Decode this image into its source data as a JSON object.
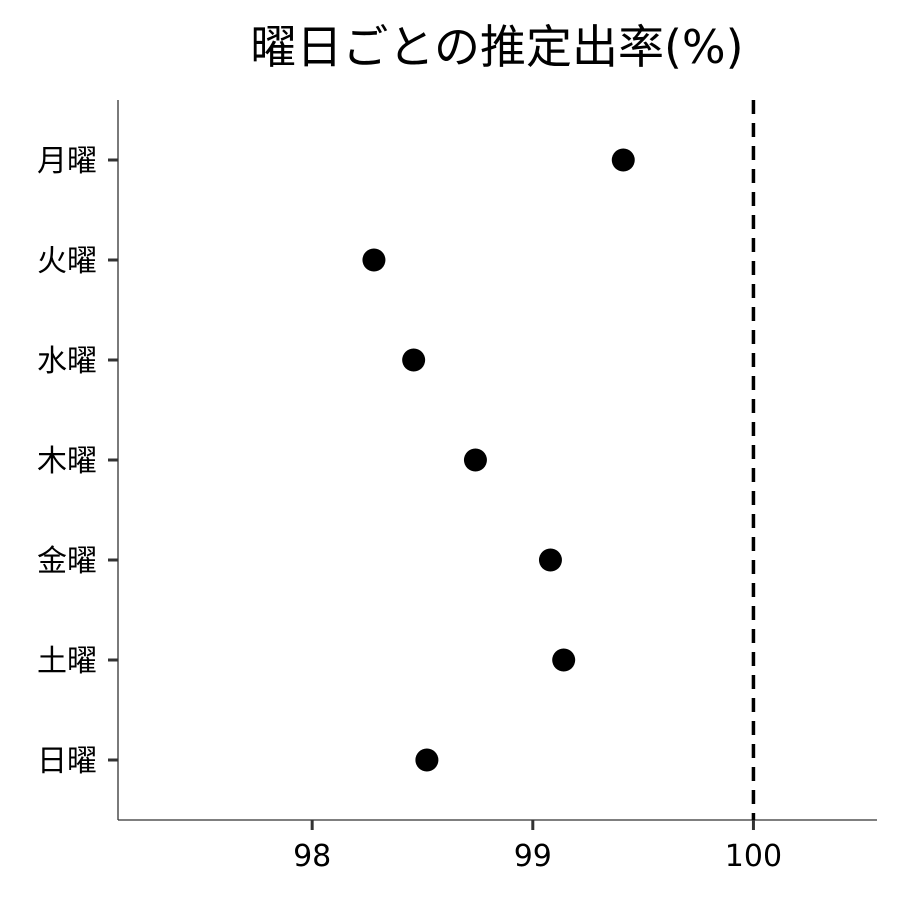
{
  "chart_data": {
    "type": "scatter",
    "title": "曜日ごとの推定出率(%)",
    "xlabel": "",
    "ylabel": "",
    "categories": [
      "月曜",
      "火曜",
      "水曜",
      "木曜",
      "金曜",
      "土曜",
      "日曜"
    ],
    "values": [
      99.41,
      98.28,
      98.46,
      98.74,
      99.08,
      99.14,
      98.52
    ],
    "x_ticks": [
      98,
      99,
      100
    ],
    "x_tick_labels": [
      "98",
      "99",
      "100"
    ],
    "xlim": [
      97.12,
      100.56
    ],
    "reference_line": {
      "value": 100,
      "style": "dashed",
      "color": "#000000"
    },
    "point_color": "#000000",
    "grid": false,
    "legend": "none"
  }
}
